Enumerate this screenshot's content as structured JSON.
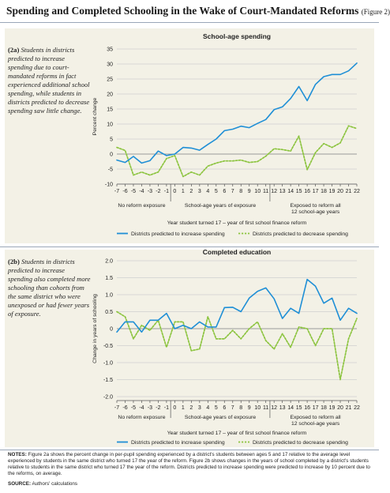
{
  "header": {
    "title": "Spending and Completed Schooling in the Wake of Court-Mandated Reforms",
    "figure_label": "(Figure 2)"
  },
  "panel_a": {
    "tag": "(2a)",
    "description": "Students in districts predicted to increase spending due to court-mandated reforms in fact experienced additional school spending, while students in districts predicted to decrease spending saw little change."
  },
  "panel_b": {
    "tag": "(2b)",
    "description": "Students in districts predicted to increase spending also completed more schooling than cohorts from the same district who were unexposed or had fewer years of exposure."
  },
  "footer": {
    "notes_label": "NOTES:",
    "notes_text": "Figure 2a shows the percent change in per-pupil spending experienced by a district's students between ages 5 and 17 relative to the average level experienced by students in the same district who turned 17 the year of the reform. Figure 2b shows changes in the years of school completed by a district's students relative to students in the same district who turned 17 the year of the reform. Districts predicted to increase spending were predicted to increase by 10 percent due to the reforms, on average.",
    "source_label": "SOURCE:",
    "source_text": "Authors' calculations"
  },
  "colors": {
    "increase": "#1f8fd6",
    "decrease": "#8cc43f",
    "panel_bg": "#f3f1e6",
    "grid": "#c9c9c9"
  },
  "chart_data": [
    {
      "type": "line",
      "title": "School-age spending",
      "ylabel": "Percent change",
      "xlabel": "Year student turned 17 – year of first school finance reform",
      "ylim": [
        -10,
        35
      ],
      "yticks": [
        "-10",
        "-5",
        "0",
        "5",
        "10",
        "15",
        "20",
        "25",
        "30",
        "35"
      ],
      "x": [
        -7,
        -6,
        -5,
        -4,
        -3,
        -2,
        -1,
        0,
        1,
        2,
        3,
        4,
        5,
        6,
        7,
        8,
        9,
        10,
        11,
        12,
        13,
        14,
        15,
        16,
        17,
        18,
        19,
        20,
        21,
        22
      ],
      "grid": true,
      "legend_position": "bottom",
      "region_labels": [
        {
          "text": [
            "No reform exposure"
          ]
        },
        {
          "text": [
            "School-age years of exposure"
          ]
        },
        {
          "text": [
            "Exposed to reform all",
            "12 school-age years"
          ]
        }
      ],
      "series": [
        {
          "name": "Districts predicted to increase spending",
          "style": "solid",
          "values": [
            -2,
            -2.8,
            -0.8,
            -3,
            -2.2,
            1,
            -0.5,
            0,
            2.2,
            2,
            1.3,
            3.2,
            5,
            7.8,
            8.3,
            9.3,
            8.8,
            10.2,
            11.5,
            14.8,
            15.7,
            18.5,
            22.5,
            17.8,
            23.2,
            25.8,
            26.5,
            26.5,
            27.7,
            30.3
          ]
        },
        {
          "name": "Districts predicted to decrease spending",
          "style": "dashed",
          "values": [
            2.2,
            1.2,
            -7,
            -6,
            -7,
            -6,
            -1.5,
            -0.5,
            -7.5,
            -6,
            -7,
            -4,
            -3,
            -2.3,
            -2.3,
            -2,
            -2.8,
            -2.5,
            -0.7,
            1.8,
            1.5,
            1,
            6,
            -5.2,
            0.5,
            3.5,
            2.2,
            3.7,
            9.4,
            8.5
          ]
        }
      ]
    },
    {
      "type": "line",
      "title": "Completed education",
      "ylabel": "Change in years of schooling",
      "xlabel": "Year student turned 17 – year of first school finance reform",
      "ylim": [
        -2.0,
        2.0
      ],
      "yticks": [
        "-2.0",
        "-1.5",
        "-1.0",
        "-0.5",
        "0",
        "0.5",
        "1.0",
        "1.5",
        "2.0"
      ],
      "x": [
        -7,
        -6,
        -5,
        -4,
        -3,
        -2,
        -1,
        0,
        1,
        2,
        3,
        4,
        5,
        6,
        7,
        8,
        9,
        10,
        11,
        12,
        13,
        14,
        15,
        16,
        17,
        18,
        19,
        20,
        21,
        22
      ],
      "grid": true,
      "legend_position": "bottom",
      "region_labels": [
        {
          "text": [
            "No reform exposure"
          ]
        },
        {
          "text": [
            "School-age years of exposure"
          ]
        },
        {
          "text": [
            "Exposed to reform all",
            "12 school-age years"
          ]
        }
      ],
      "series": [
        {
          "name": "Districts predicted to increase spending",
          "style": "solid",
          "values": [
            -0.1,
            0.2,
            0.2,
            -0.1,
            0.25,
            0.25,
            0.45,
            0,
            0.1,
            0,
            0.2,
            0.05,
            0.05,
            0.62,
            0.63,
            0.5,
            0.9,
            1.1,
            1.2,
            0.88,
            0.3,
            0.6,
            0.45,
            1.45,
            1.25,
            0.75,
            0.9,
            0.25,
            0.6,
            0.45
          ]
        },
        {
          "name": "Districts predicted to decrease spending",
          "style": "dashed",
          "values": [
            0.5,
            0.35,
            -0.3,
            0.1,
            -0.05,
            0.25,
            -0.55,
            0.2,
            0.2,
            -0.65,
            -0.6,
            0.35,
            -0.3,
            -0.3,
            -0.05,
            -0.3,
            0,
            0.2,
            -0.35,
            -0.6,
            -0.15,
            -0.55,
            0.05,
            0,
            -0.5,
            0,
            0,
            -1.5,
            -0.3,
            0.3
          ]
        }
      ]
    }
  ]
}
